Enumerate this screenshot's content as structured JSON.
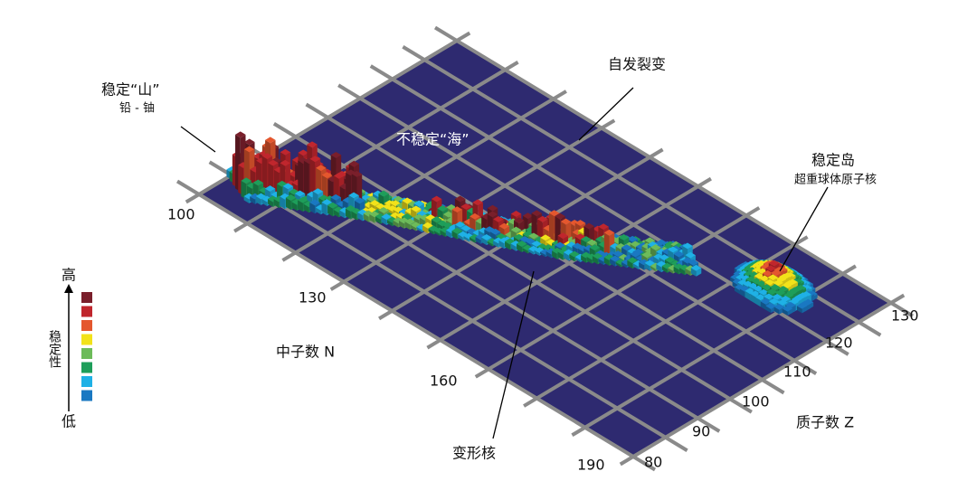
{
  "labels": {
    "stable_mountain": "稳定“山”",
    "stable_mountain_sub": "铅 - 铀",
    "unstable_sea": "不稳定“海”",
    "fission": "自发裂变",
    "island": "稳定岛",
    "island_sub": "超重球体原子核",
    "deformed": "变形核"
  },
  "axes": {
    "n_label": "中子数 N",
    "z_label": "质子数 Z",
    "n_ticks": [
      "100",
      "130",
      "160",
      "190"
    ],
    "z_ticks": [
      "80",
      "90",
      "100",
      "110",
      "120",
      "130"
    ]
  },
  "legend": {
    "high": "高",
    "low": "低",
    "label": "稳定性"
  }
}
